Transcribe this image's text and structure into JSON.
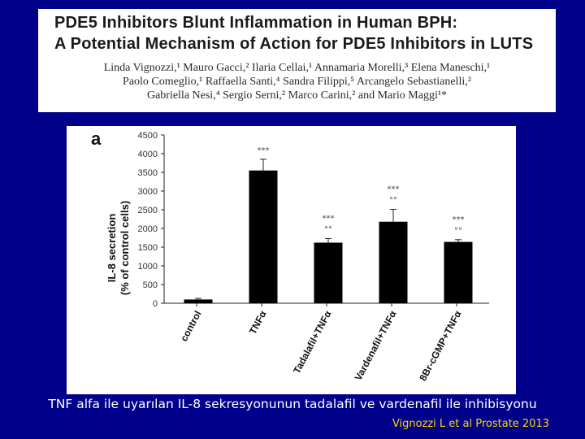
{
  "paper": {
    "title_line1": "PDE5 Inhibitors Blunt Inflammation in Human BPH:",
    "title_line2": "A Potential Mechanism of Action for PDE5 Inhibitors in LUTS",
    "authors_line1": "Linda Vignozzi,¹ Mauro Gacci,² Ilaria Cellai,¹ Annamaria Morelli,³ Elena Maneschi,¹",
    "authors_line2": "Paolo Comeglio,¹ Raffaella Santi,⁴ Sandra Filippi,⁵ Arcangelo Sebastianelli,²",
    "authors_line3": "Gabriella Nesi,⁴ Sergio Serni,² Marco Carini,² and Mario Maggi¹*"
  },
  "chart_data": {
    "type": "bar",
    "panel_label": "a",
    "ylabel_line1": "IL-8 secretion",
    "ylabel_line2": "(% of control cells)",
    "ylim": [
      0,
      4500
    ],
    "yticks": [
      0,
      500,
      1000,
      1500,
      2000,
      2500,
      3000,
      3500,
      4000,
      4500
    ],
    "ytick_labels": [
      "0",
      "500",
      "1000",
      "1500",
      "2000",
      "2500",
      "3000",
      "3500",
      "4000",
      "4500"
    ],
    "categories": [
      "control",
      "TNFα",
      "Tadalafil+TNFα",
      "Vardenafil+TNFα",
      "8Br-cGMP+TNFα"
    ],
    "values": [
      100,
      3550,
      1620,
      2180,
      1640
    ],
    "errors": [
      30,
      300,
      110,
      330,
      60
    ],
    "annotations": [
      [],
      [
        "***"
      ],
      [
        "***",
        "°°"
      ],
      [
        "***",
        "°°"
      ],
      [
        "***",
        "°°"
      ]
    ],
    "bar_color": "#000000",
    "grid": false
  },
  "caption": "TNF alfa ile uyarılan IL-8 sekresyonunun tadalafil ve vardenafil ile inhibisyonu",
  "citation": "Vignozzi L et al Prostate 2013"
}
